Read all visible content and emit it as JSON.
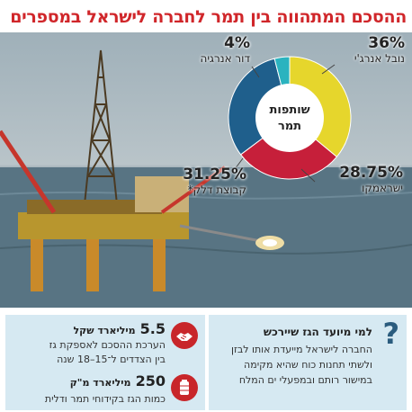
{
  "title": "ההסכם המתהווה בין תמר לחברה לישראל במספרים",
  "chart_data": {
    "type": "pie",
    "center_label": "שותפות תמר",
    "slices": [
      {
        "label": "נובל אנרג'י",
        "value": 36,
        "display": "36%",
        "color": "#e6d62c"
      },
      {
        "label": "ישראמקו",
        "value": 28.75,
        "display": "28.75%",
        "color": "#c61f3a"
      },
      {
        "label": "קבוצת דלק*",
        "value": 31.25,
        "display": "31.25%",
        "color": "#1f5f8c"
      },
      {
        "label": "דור אנרגיה",
        "value": 4,
        "display": "4%",
        "color": "#2bb3bf"
      }
    ]
  },
  "question": {
    "title": "למי מיועד הגז שיירכש",
    "text": "החברה לישראל מייעדת אותו לבזן ולשתי תחנות כוח שהיא מקימה במישור רותם ובמפעלי ים המלח",
    "icon": "question-mark-icon"
  },
  "stats": [
    {
      "value": "5.5",
      "unit": "מיליארד שקל",
      "text_lines": [
        "הערכת ההסכם לאספקת גז",
        "בין הצדדים ל־15–18 שנה"
      ],
      "icon": "handshake-icon"
    },
    {
      "value": "250",
      "unit": "מיליארד מ\"ק",
      "text_lines": [
        "כמות הגז בקידוחי תמר ודלית"
      ],
      "icon": "gas-tank-icon"
    }
  ]
}
